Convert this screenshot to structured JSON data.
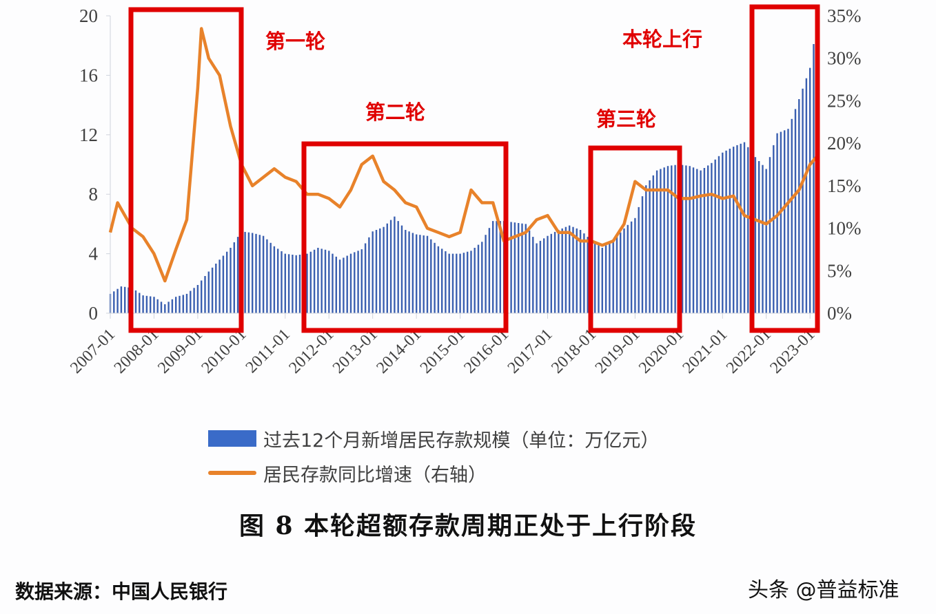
{
  "chart_data": {
    "type": "bar+line",
    "title": "图 8  本轮超额存款周期正处于上行阶段",
    "xlabel": "",
    "ylabel_left": "过去12个月新增居民存款规模（单位：万亿元）",
    "ylabel_right": "居民存款同比增速（右轴）",
    "ylim_left": [
      0,
      20
    ],
    "ylim_right": [
      0,
      35
    ],
    "yticks_left": [
      "0",
      "4",
      "8",
      "12",
      "16",
      "20"
    ],
    "yticks_right": [
      "0%",
      "5%",
      "10%",
      "15%",
      "20%",
      "25%",
      "30%",
      "35%"
    ],
    "x_tick_labels": [
      "2007-01",
      "2008-01",
      "2009-01",
      "2010-01",
      "2011-01",
      "2012-01",
      "2013-01",
      "2014-01",
      "2015-01",
      "2016-01",
      "2017-01",
      "2018-01",
      "2019-01",
      "2020-01",
      "2021-01",
      "2022-01",
      "2023-01"
    ],
    "x_range": [
      "2007-01",
      "2023-03"
    ],
    "grid": false,
    "legend_position": "bottom",
    "series": [
      {
        "name": "过去12个月新增居民存款规模（单位：万亿元）",
        "type": "bar",
        "axis": "left",
        "color": "#3a5fb0",
        "x": [
          "2007-01",
          "2007-04",
          "2007-07",
          "2007-10",
          "2008-01",
          "2008-04",
          "2008-07",
          "2008-10",
          "2009-01",
          "2009-04",
          "2009-07",
          "2009-10",
          "2010-01",
          "2010-04",
          "2010-07",
          "2010-10",
          "2011-01",
          "2011-04",
          "2011-07",
          "2011-10",
          "2012-01",
          "2012-04",
          "2012-07",
          "2012-10",
          "2013-01",
          "2013-04",
          "2013-07",
          "2013-10",
          "2014-01",
          "2014-04",
          "2014-07",
          "2014-10",
          "2015-01",
          "2015-04",
          "2015-07",
          "2015-10",
          "2016-01",
          "2016-04",
          "2016-07",
          "2016-10",
          "2017-01",
          "2017-04",
          "2017-07",
          "2017-10",
          "2018-01",
          "2018-04",
          "2018-07",
          "2018-10",
          "2019-01",
          "2019-04",
          "2019-07",
          "2019-10",
          "2020-01",
          "2020-04",
          "2020-07",
          "2020-10",
          "2021-01",
          "2021-04",
          "2021-07",
          "2021-10",
          "2022-01",
          "2022-04",
          "2022-07",
          "2022-10",
          "2023-01",
          "2023-03"
        ],
        "values": [
          1.3,
          1.8,
          1.7,
          1.2,
          1.1,
          0.6,
          1.1,
          1.3,
          1.9,
          2.8,
          3.6,
          4.4,
          5.5,
          5.4,
          5.2,
          4.5,
          4.0,
          3.9,
          4.0,
          4.4,
          4.2,
          3.6,
          4.0,
          4.3,
          5.5,
          5.8,
          6.5,
          5.6,
          5.3,
          5.2,
          4.5,
          4.0,
          4.0,
          4.2,
          4.8,
          6.2,
          6.2,
          6.1,
          6.0,
          4.7,
          5.2,
          5.6,
          5.9,
          5.6,
          4.9,
          4.4,
          4.9,
          5.7,
          6.4,
          8.6,
          9.6,
          9.9,
          10.0,
          9.9,
          9.6,
          10.1,
          10.8,
          11.2,
          11.5,
          10.5,
          9.7,
          12.1,
          12.4,
          14.4,
          16.5,
          19.7
        ]
      },
      {
        "name": "居民存款同比增速（右轴）",
        "type": "line",
        "axis": "right",
        "color": "#e8822a",
        "x": [
          "2007-01",
          "2007-03",
          "2007-07",
          "2007-10",
          "2008-01",
          "2008-04",
          "2008-07",
          "2008-10",
          "2009-01",
          "2009-02",
          "2009-04",
          "2009-07",
          "2009-10",
          "2010-01",
          "2010-04",
          "2010-07",
          "2010-10",
          "2011-01",
          "2011-04",
          "2011-07",
          "2011-10",
          "2012-01",
          "2012-04",
          "2012-07",
          "2012-10",
          "2013-01",
          "2013-04",
          "2013-07",
          "2013-10",
          "2014-01",
          "2014-04",
          "2014-07",
          "2014-10",
          "2015-01",
          "2015-04",
          "2015-07",
          "2015-10",
          "2016-01",
          "2016-04",
          "2016-07",
          "2016-10",
          "2017-01",
          "2017-04",
          "2017-07",
          "2017-10",
          "2018-01",
          "2018-04",
          "2018-07",
          "2018-10",
          "2019-01",
          "2019-04",
          "2019-07",
          "2019-10",
          "2020-01",
          "2020-04",
          "2020-07",
          "2020-10",
          "2021-01",
          "2021-04",
          "2021-07",
          "2021-10",
          "2022-01",
          "2022-04",
          "2022-07",
          "2022-10",
          "2023-01",
          "2023-03"
        ],
        "values": [
          9.5,
          13.0,
          10.0,
          9.0,
          7.0,
          3.8,
          7.5,
          11.0,
          26.5,
          33.5,
          30.0,
          28.0,
          22.0,
          17.5,
          15.0,
          16.0,
          17.0,
          16.0,
          15.5,
          14.0,
          14.0,
          13.5,
          12.5,
          14.5,
          17.5,
          18.5,
          15.5,
          14.5,
          13.0,
          12.5,
          10.0,
          9.5,
          9.0,
          9.5,
          14.5,
          13.0,
          13.0,
          8.5,
          9.0,
          9.5,
          11.0,
          11.5,
          9.5,
          9.5,
          8.5,
          8.5,
          8.0,
          8.5,
          10.5,
          15.5,
          14.5,
          14.5,
          14.5,
          13.5,
          13.5,
          13.8,
          14.0,
          13.5,
          13.8,
          11.5,
          11.0,
          10.5,
          11.5,
          13.0,
          14.5,
          17.5,
          18.5
        ]
      }
    ],
    "annotations": [
      {
        "label": "第一轮",
        "box": [
          "2007-07",
          "2009-12"
        ]
      },
      {
        "label": "第二轮",
        "box": [
          "2011-10",
          "2016-01"
        ]
      },
      {
        "label": "第三轮",
        "box": [
          "2017-12",
          "2020-01"
        ]
      },
      {
        "label": "本轮上行",
        "box": [
          "2021-10",
          "2023-03"
        ]
      }
    ]
  },
  "legend": {
    "bar_label": "过去12个月新增居民存款规模（单位：万亿元）",
    "line_label": "居民存款同比增速（右轴）"
  },
  "caption": "图 8   本轮超额存款周期正处于上行阶段",
  "source": "数据来源：中国人民银行",
  "watermark": "头条 @普益标准",
  "colors": {
    "bar": "#3a5fb0",
    "line": "#e8822a",
    "box": "#e00000"
  }
}
